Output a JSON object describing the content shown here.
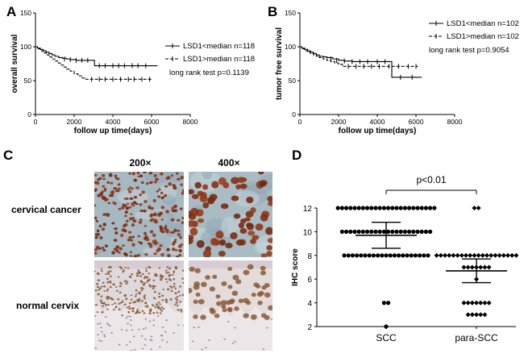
{
  "panels": {
    "A": "A",
    "B": "B",
    "C": "C",
    "D": "D"
  },
  "chart_data": [
    {
      "type": "line",
      "panel": "A",
      "subtype": "kaplan-meier",
      "xlabel": "follow up time(days)",
      "ylabel": "overall survival",
      "xlim": [
        0,
        8000
      ],
      "ylim": [
        0,
        150
      ],
      "xticks": [
        "0",
        "2000",
        "4000",
        "6000",
        "8000"
      ],
      "yticks": [
        "0",
        "50",
        "100",
        "150"
      ],
      "series": [
        {
          "name": "LSD1<median n=118",
          "style": "solid",
          "x": [
            0,
            100,
            250,
            400,
            550,
            700,
            850,
            1000,
            1200,
            1400,
            1600,
            1800,
            2100,
            2500,
            3000,
            3050,
            6300
          ],
          "y": [
            100,
            98,
            96,
            94,
            92,
            90,
            88,
            86,
            84,
            83,
            82,
            81,
            80,
            80,
            80,
            72,
            72
          ],
          "censor_x": [
            1500,
            1800,
            2100,
            2400,
            2700,
            3300,
            3600,
            4000,
            4300,
            4600,
            5000,
            5300,
            5700
          ],
          "censor_y": [
            82,
            81,
            80,
            80,
            80,
            72,
            72,
            72,
            72,
            72,
            72,
            72,
            72
          ]
        },
        {
          "name": "LSD1>median n=118",
          "style": "dashed",
          "x": [
            0,
            100,
            250,
            400,
            550,
            700,
            850,
            1000,
            1150,
            1300,
            1450,
            1600,
            1800,
            2000,
            2200,
            2400,
            2600,
            6000
          ],
          "y": [
            100,
            97,
            94,
            91,
            88,
            85,
            82,
            79,
            76,
            73,
            70,
            67,
            64,
            60,
            57,
            54,
            52,
            52
          ],
          "censor_x": [
            2900,
            3300,
            3600,
            4000,
            4400,
            4800,
            5100,
            5500,
            5900
          ],
          "censor_y": [
            52,
            52,
            52,
            52,
            52,
            52,
            52,
            52,
            52
          ]
        }
      ],
      "annotation": "long rank test p=0.1139"
    },
    {
      "type": "line",
      "panel": "B",
      "subtype": "kaplan-meier",
      "xlabel": "follow up time(days)",
      "ylabel": "tumor free survival",
      "xlim": [
        0,
        8000
      ],
      "ylim": [
        0,
        150
      ],
      "xticks": [
        "0",
        "2000",
        "4000",
        "6000",
        "8000"
      ],
      "yticks": [
        "0",
        "50",
        "100",
        "150"
      ],
      "series": [
        {
          "name": "LSD1<median n=102",
          "style": "solid",
          "x": [
            0,
            100,
            250,
            400,
            550,
            700,
            850,
            1000,
            1200,
            1400,
            1700,
            2000,
            2300,
            2700,
            3500,
            4700,
            4750,
            6300
          ],
          "y": [
            100,
            98,
            96,
            94,
            92,
            90,
            88,
            86,
            85,
            84,
            82,
            80,
            79,
            78,
            78,
            78,
            55,
            55
          ],
          "censor_x": [
            1600,
            1900,
            2300,
            2700,
            3100,
            3500,
            4000,
            4400,
            5200,
            5800
          ],
          "censor_y": [
            82,
            80,
            79,
            78,
            78,
            78,
            78,
            78,
            55,
            55
          ]
        },
        {
          "name": "LSD1>median n=102",
          "style": "dashed",
          "x": [
            0,
            100,
            250,
            400,
            550,
            700,
            850,
            1000,
            1200,
            1400,
            1600,
            1800,
            2000,
            2200,
            6100
          ],
          "y": [
            100,
            97,
            94,
            92,
            90,
            88,
            86,
            84,
            82,
            80,
            78,
            76,
            74,
            71,
            71
          ],
          "censor_x": [
            2500,
            2900,
            3300,
            3700,
            4100,
            4600,
            5100,
            5600,
            6000
          ],
          "censor_y": [
            71,
            71,
            71,
            71,
            71,
            71,
            71,
            71,
            71
          ]
        }
      ],
      "annotation": "long rank test p=0.9054"
    },
    {
      "type": "scatter",
      "panel": "D",
      "subtype": "dot-plot with mean and SEM",
      "ylabel": "IHC score",
      "categories": [
        "SCC",
        "para-SCC"
      ],
      "ylim": [
        2,
        12
      ],
      "yticks": [
        "2",
        "4",
        "6",
        "8",
        "10",
        "12"
      ],
      "series": [
        {
          "category": "SCC",
          "values": [
            12,
            12,
            12,
            12,
            12,
            12,
            12,
            12,
            12,
            12,
            12,
            12,
            12,
            12,
            12,
            12,
            12,
            12,
            12,
            12,
            12,
            12,
            12,
            12,
            10,
            10,
            10,
            10,
            10,
            10,
            10,
            10,
            10,
            10,
            10,
            10,
            10,
            10,
            10,
            10,
            10,
            10,
            10,
            10,
            10,
            10,
            8,
            8,
            8,
            8,
            8,
            8,
            8,
            8,
            8,
            8,
            8,
            8,
            8,
            8,
            8,
            8,
            8,
            8,
            8,
            8,
            8,
            4,
            4,
            2
          ],
          "mean": 9.7,
          "sem_low": 8.6,
          "sem_high": 10.8
        },
        {
          "category": "para-SCC",
          "values": [
            12,
            12,
            8,
            8,
            8,
            8,
            8,
            8,
            8,
            8,
            8,
            8,
            8,
            8,
            8,
            8,
            8,
            8,
            8,
            8,
            8,
            8,
            7,
            7,
            7,
            7,
            7,
            7,
            7,
            6,
            4,
            4,
            4,
            4,
            4,
            4,
            4,
            3,
            3,
            3,
            3,
            3
          ],
          "mean": 6.7,
          "sem_low": 5.7,
          "sem_high": 7.7
        }
      ],
      "comparison": "p<0.01"
    }
  ],
  "panel_c": {
    "columns": [
      "200×",
      "400×"
    ],
    "rows": [
      "cervical cancer",
      "normal cervix"
    ]
  },
  "colors": {
    "line": "#000000",
    "tumor_bg": "#a6b8c2",
    "nuclei": "#6e3a1c",
    "normal_bg": "#e6dad8",
    "normal_nuclei": "#8a5a3a"
  }
}
